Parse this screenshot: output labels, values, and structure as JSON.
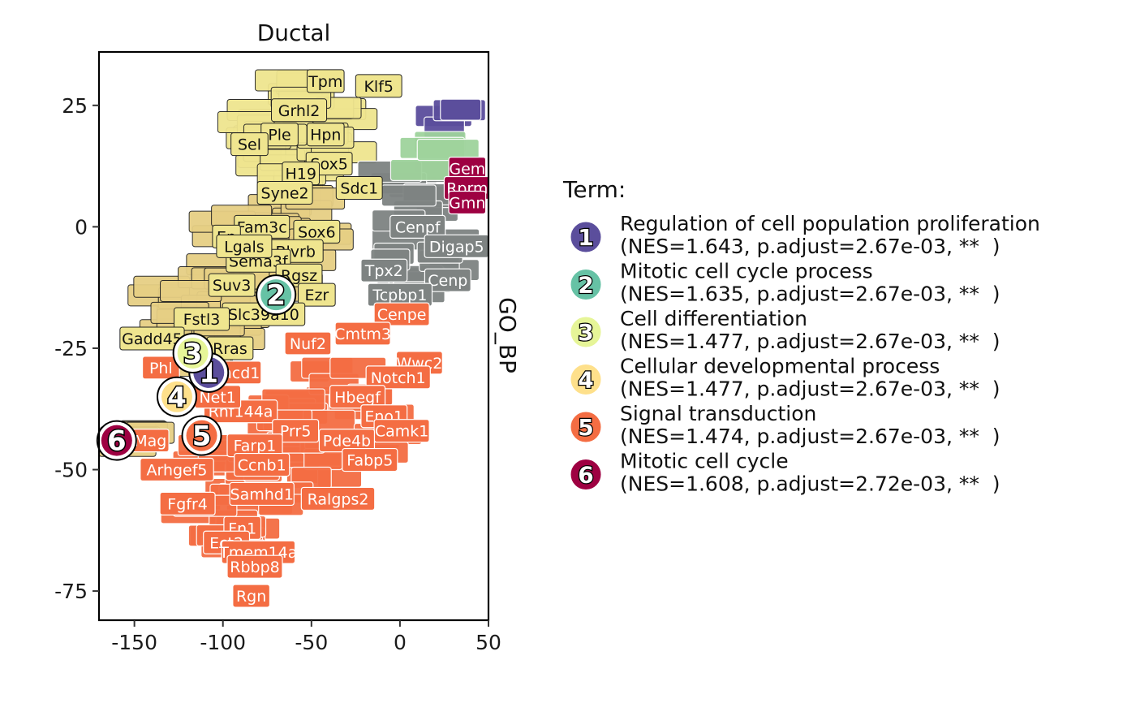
{
  "chart_data": {
    "type": "scatter",
    "title": "Ductal",
    "strip_label": "GO_BP",
    "xlabel": "",
    "ylabel": "",
    "xlim": [
      -170,
      50
    ],
    "ylim": [
      -81,
      36
    ],
    "x_ticks": [
      -150,
      -100,
      -50,
      0,
      50
    ],
    "y_ticks": [
      25,
      0,
      -25,
      -50,
      -75
    ],
    "x_tick_labels": [
      "-150",
      "-100",
      "-50",
      "0",
      "50"
    ],
    "y_tick_labels": [
      "25",
      "0",
      "-25",
      "-50",
      "-75"
    ],
    "grid": false,
    "legend_position": "right",
    "legend_title": "Term:",
    "terms": [
      {
        "id": "1",
        "name": "Regulation of cell population proliferation",
        "stats": "(NES=1.643, p.adjust=2.67e-03, **  )",
        "color": "#5B4E9C",
        "x": -108,
        "y": -30
      },
      {
        "id": "2",
        "name": "Mitotic cell cycle process",
        "stats": "(NES=1.635, p.adjust=2.67e-03, **  )",
        "color": "#66C2A5",
        "x": -70,
        "y": -14
      },
      {
        "id": "3",
        "name": "Cell differentiation",
        "stats": "(NES=1.477, p.adjust=2.67e-03, **  )",
        "color": "#E6F598",
        "x": -117,
        "y": -26
      },
      {
        "id": "4",
        "name": "Cellular developmental process",
        "stats": "(NES=1.477, p.adjust=2.67e-03, **  )",
        "color": "#FEE08B",
        "x": -126,
        "y": -35
      },
      {
        "id": "5",
        "name": "Signal transduction",
        "stats": "(NES=1.474, p.adjust=2.67e-03, **  )",
        "color": "#F46D43",
        "x": -112,
        "y": -43
      },
      {
        "id": "6",
        "name": "Mitotic cell cycle",
        "stats": "(NES=1.608, p.adjust=2.72e-03, **  )",
        "color": "#9E0142",
        "x": -160,
        "y": -44
      }
    ],
    "gene_labels": [
      {
        "label": "Tpm",
        "x": -42,
        "y": 30,
        "group": "yellow"
      },
      {
        "label": "Klf5",
        "x": -12,
        "y": 29,
        "group": "yellow"
      },
      {
        "label": "Grhl2",
        "x": -57,
        "y": 24,
        "group": "yellow"
      },
      {
        "label": "Hpn",
        "x": -42,
        "y": 19,
        "group": "yellow"
      },
      {
        "label": "Ple",
        "x": -68,
        "y": 19,
        "group": "yellow"
      },
      {
        "label": "Sel",
        "x": -85,
        "y": 17,
        "group": "yellow"
      },
      {
        "label": "Sox5",
        "x": -40,
        "y": 13,
        "group": "yellow"
      },
      {
        "label": "H19",
        "x": -56,
        "y": 11,
        "group": "yellow"
      },
      {
        "label": "Sdc1",
        "x": -23,
        "y": 8,
        "group": "yellow"
      },
      {
        "label": "Syne2",
        "x": -65,
        "y": 7,
        "group": "yellow"
      },
      {
        "label": "Fam3c",
        "x": -78,
        "y": 0,
        "group": "yellow"
      },
      {
        "label": "Sox6",
        "x": -47,
        "y": -1,
        "group": "yellow"
      },
      {
        "label": "Blvrb",
        "x": -59,
        "y": -5,
        "group": "yellow"
      },
      {
        "label": "Sema3f",
        "x": -80,
        "y": -7,
        "group": "yellow"
      },
      {
        "label": "Rgsz",
        "x": -57,
        "y": -10,
        "group": "yellow"
      },
      {
        "label": "Ezr",
        "x": -47,
        "y": -14,
        "group": "yellow"
      },
      {
        "label": "Slc39a10",
        "x": -77,
        "y": -18,
        "group": "yellow"
      },
      {
        "label": "Fstl3",
        "x": -112,
        "y": -19,
        "group": "yellow"
      },
      {
        "label": "Rras",
        "x": -96,
        "y": -25,
        "group": "yellow"
      },
      {
        "label": "Gadd45",
        "x": -140,
        "y": -23,
        "group": "yellow"
      },
      {
        "label": "Ep",
        "x": -98,
        "y": -2,
        "group": "yellow"
      },
      {
        "label": "Lgals",
        "x": -88,
        "y": -4,
        "group": "yellow"
      },
      {
        "label": "Suv3",
        "x": -95,
        "y": -12,
        "group": "yellow"
      },
      {
        "label": "Cenpf",
        "x": 10,
        "y": 0,
        "group": "gray"
      },
      {
        "label": "Digap5",
        "x": 32,
        "y": -4,
        "group": "gray"
      },
      {
        "label": "Tpx2",
        "x": -9,
        "y": -9,
        "group": "gray"
      },
      {
        "label": "Cenp",
        "x": 27,
        "y": -11,
        "group": "gray"
      },
      {
        "label": "Tcpbp1",
        "x": 0,
        "y": -14,
        "group": "gray"
      },
      {
        "label": "Gem",
        "x": 38,
        "y": 12,
        "group": "darkred"
      },
      {
        "label": "Rprm",
        "x": 38,
        "y": 8,
        "group": "darkred"
      },
      {
        "label": "Gmn",
        "x": 38,
        "y": 5,
        "group": "darkred"
      },
      {
        "label": "Cenpe",
        "x": 1,
        "y": -18,
        "group": "orange"
      },
      {
        "label": "Cmtm3",
        "x": -21,
        "y": -22,
        "group": "orange"
      },
      {
        "label": "Nuf2",
        "x": -52,
        "y": -24,
        "group": "orange"
      },
      {
        "label": "Wwc2",
        "x": 11,
        "y": -28,
        "group": "orange"
      },
      {
        "label": "Notch1",
        "x": -1,
        "y": -31,
        "group": "orange"
      },
      {
        "label": "Emcd1",
        "x": -94,
        "y": -30,
        "group": "orange"
      },
      {
        "label": "Phl",
        "x": -135,
        "y": -29,
        "group": "orange"
      },
      {
        "label": "Hbegf",
        "x": -24,
        "y": -35,
        "group": "orange"
      },
      {
        "label": "Rnf144a",
        "x": -90,
        "y": -38,
        "group": "orange"
      },
      {
        "label": "Net1",
        "x": -103,
        "y": -35,
        "group": "orange"
      },
      {
        "label": "Eno1",
        "x": -9,
        "y": -39,
        "group": "orange"
      },
      {
        "label": "Camk1",
        "x": 1,
        "y": -42,
        "group": "orange"
      },
      {
        "label": "Prr5",
        "x": -59,
        "y": -42,
        "group": "orange"
      },
      {
        "label": "Pde4b",
        "x": -30,
        "y": -44,
        "group": "orange"
      },
      {
        "label": "Mag",
        "x": -141,
        "y": -44,
        "group": "orange"
      },
      {
        "label": "Farp1",
        "x": -82,
        "y": -45,
        "group": "orange"
      },
      {
        "label": "Fabp5",
        "x": -17,
        "y": -48,
        "group": "orange"
      },
      {
        "label": "Ccnb1",
        "x": -78,
        "y": -49,
        "group": "orange"
      },
      {
        "label": "Arhgef5",
        "x": -126,
        "y": -50,
        "group": "orange"
      },
      {
        "label": "Samhd1",
        "x": -78,
        "y": -55,
        "group": "orange"
      },
      {
        "label": "Ralgps2",
        "x": -35,
        "y": -56,
        "group": "orange"
      },
      {
        "label": "Fgfr4",
        "x": -120,
        "y": -57,
        "group": "orange"
      },
      {
        "label": "Fn1",
        "x": -89,
        "y": -62,
        "group": "orange"
      },
      {
        "label": "Ect2",
        "x": -98,
        "y": -65,
        "group": "orange"
      },
      {
        "label": "Tmem14a",
        "x": -80,
        "y": -67,
        "group": "orange"
      },
      {
        "label": "Rbbp8",
        "x": -82,
        "y": -70,
        "group": "orange"
      },
      {
        "label": "Rgn",
        "x": -84,
        "y": -76,
        "group": "orange"
      }
    ]
  },
  "colors": {
    "yellow_fill": "#EFE58F",
    "tan_fill": "#E6CF84",
    "gray_fill": "#7E8382",
    "orange_fill": "#F46D43",
    "darkred_fill": "#9E0142",
    "purple_fill": "#5B4E9C",
    "green_fill": "#9FD39C"
  }
}
